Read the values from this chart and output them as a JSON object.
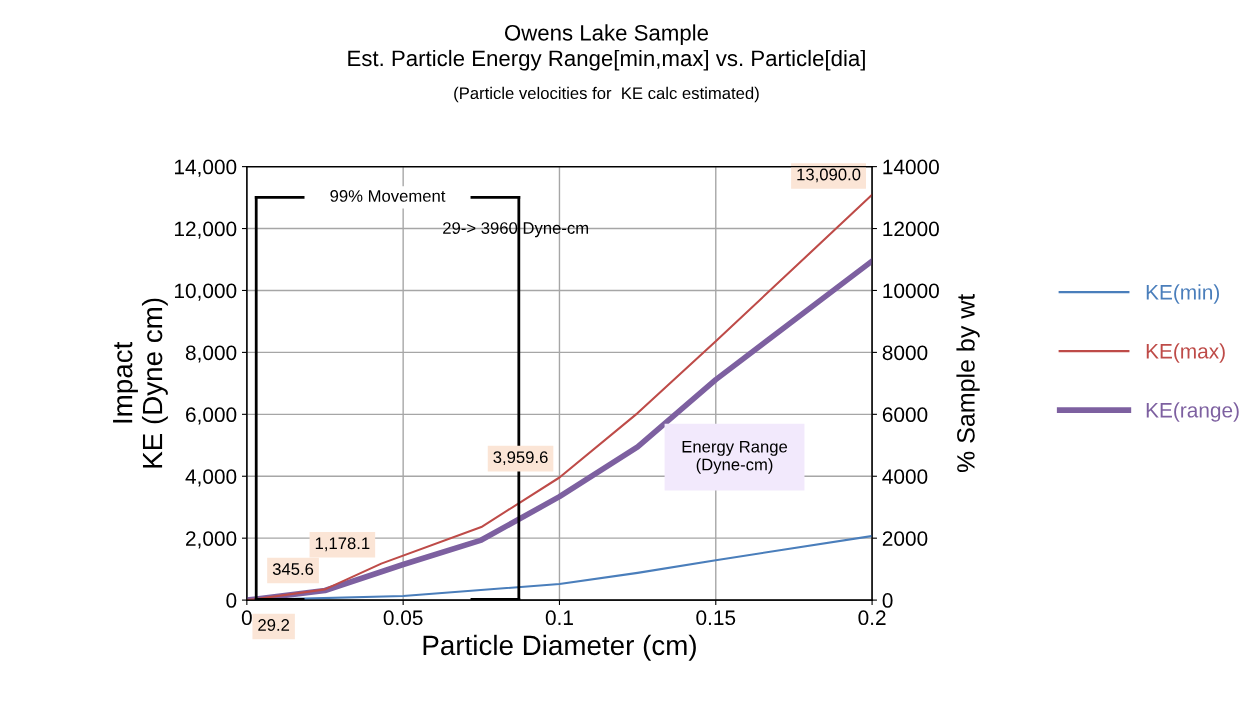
{
  "chart_data": {
    "type": "line",
    "title": "Owens Lake Sample\nEst. Particle Energy Range[min,max] vs. Particle[dia]",
    "subtitle": "(Particle velocities for  KE calc estimated)",
    "xlabel": "Particle Diameter (cm)",
    "ylabel": "Impact\nKE (Dyne cm)",
    "y2label": "% Sample by wt",
    "series": [
      {
        "name": "KE(min)",
        "color": "#4a7ebb",
        "x": [
          0,
          0.05,
          0.1,
          0.125,
          0.15,
          0.2
        ],
        "values": [
          0,
          130,
          520,
          880,
          1290,
          2070
        ]
      },
      {
        "name": "KE(max)",
        "color": "#be4b48",
        "x": [
          0,
          0.0025,
          0.025,
          0.043,
          0.075,
          0.1,
          0.125,
          0.15,
          0.2
        ],
        "values": [
          0,
          29.2,
          345.6,
          1178.1,
          2360,
          3959.6,
          6040,
          8360,
          13090
        ],
        "value_labels": [
          null,
          "29.2",
          "345.6",
          "1,178.1",
          null,
          "3,959.6",
          null,
          null,
          "13,090.0"
        ]
      },
      {
        "name": "KE(range)",
        "color": "#7d60a0",
        "x": [
          0,
          0.025,
          0.05,
          0.075,
          0.1,
          0.125,
          0.15,
          0.2
        ],
        "values": [
          0,
          310,
          1150,
          1940,
          3340,
          4950,
          7120,
          10950
        ]
      }
    ],
    "xlim": [
      0,
      0.2
    ],
    "xticks": [
      0,
      0.05,
      0.1,
      0.15,
      0.2
    ],
    "ylim": [
      0,
      14000
    ],
    "yticks": [
      0,
      {
        "value": 2000,
        "label": "2,000"
      },
      {
        "value": 4000,
        "label": "4,000"
      },
      {
        "value": 6000,
        "label": "6,000"
      },
      {
        "value": 8000,
        "label": "8,000"
      },
      {
        "value": 10000,
        "label": "10,000"
      },
      {
        "value": 12000,
        "label": "12,000"
      },
      {
        "value": 14000,
        "label": "14,000"
      }
    ],
    "y2lim": [
      0,
      14000
    ],
    "y2ticks": [
      0,
      2000,
      4000,
      6000,
      8000,
      10000,
      12000,
      14000
    ],
    "ref_lines": [
      {
        "axis": "x",
        "value": 0.003,
        "color": "#000000"
      },
      {
        "axis": "x",
        "value": 0.087,
        "color": "#000000"
      }
    ],
    "annotations": [
      "99% Movement",
      "29-> 3960 Dyne-cm",
      "Energy Range\n(Dyne-cm)"
    ],
    "grid": true,
    "legend": "right",
    "marker": "none",
    "line_style": "solid"
  }
}
